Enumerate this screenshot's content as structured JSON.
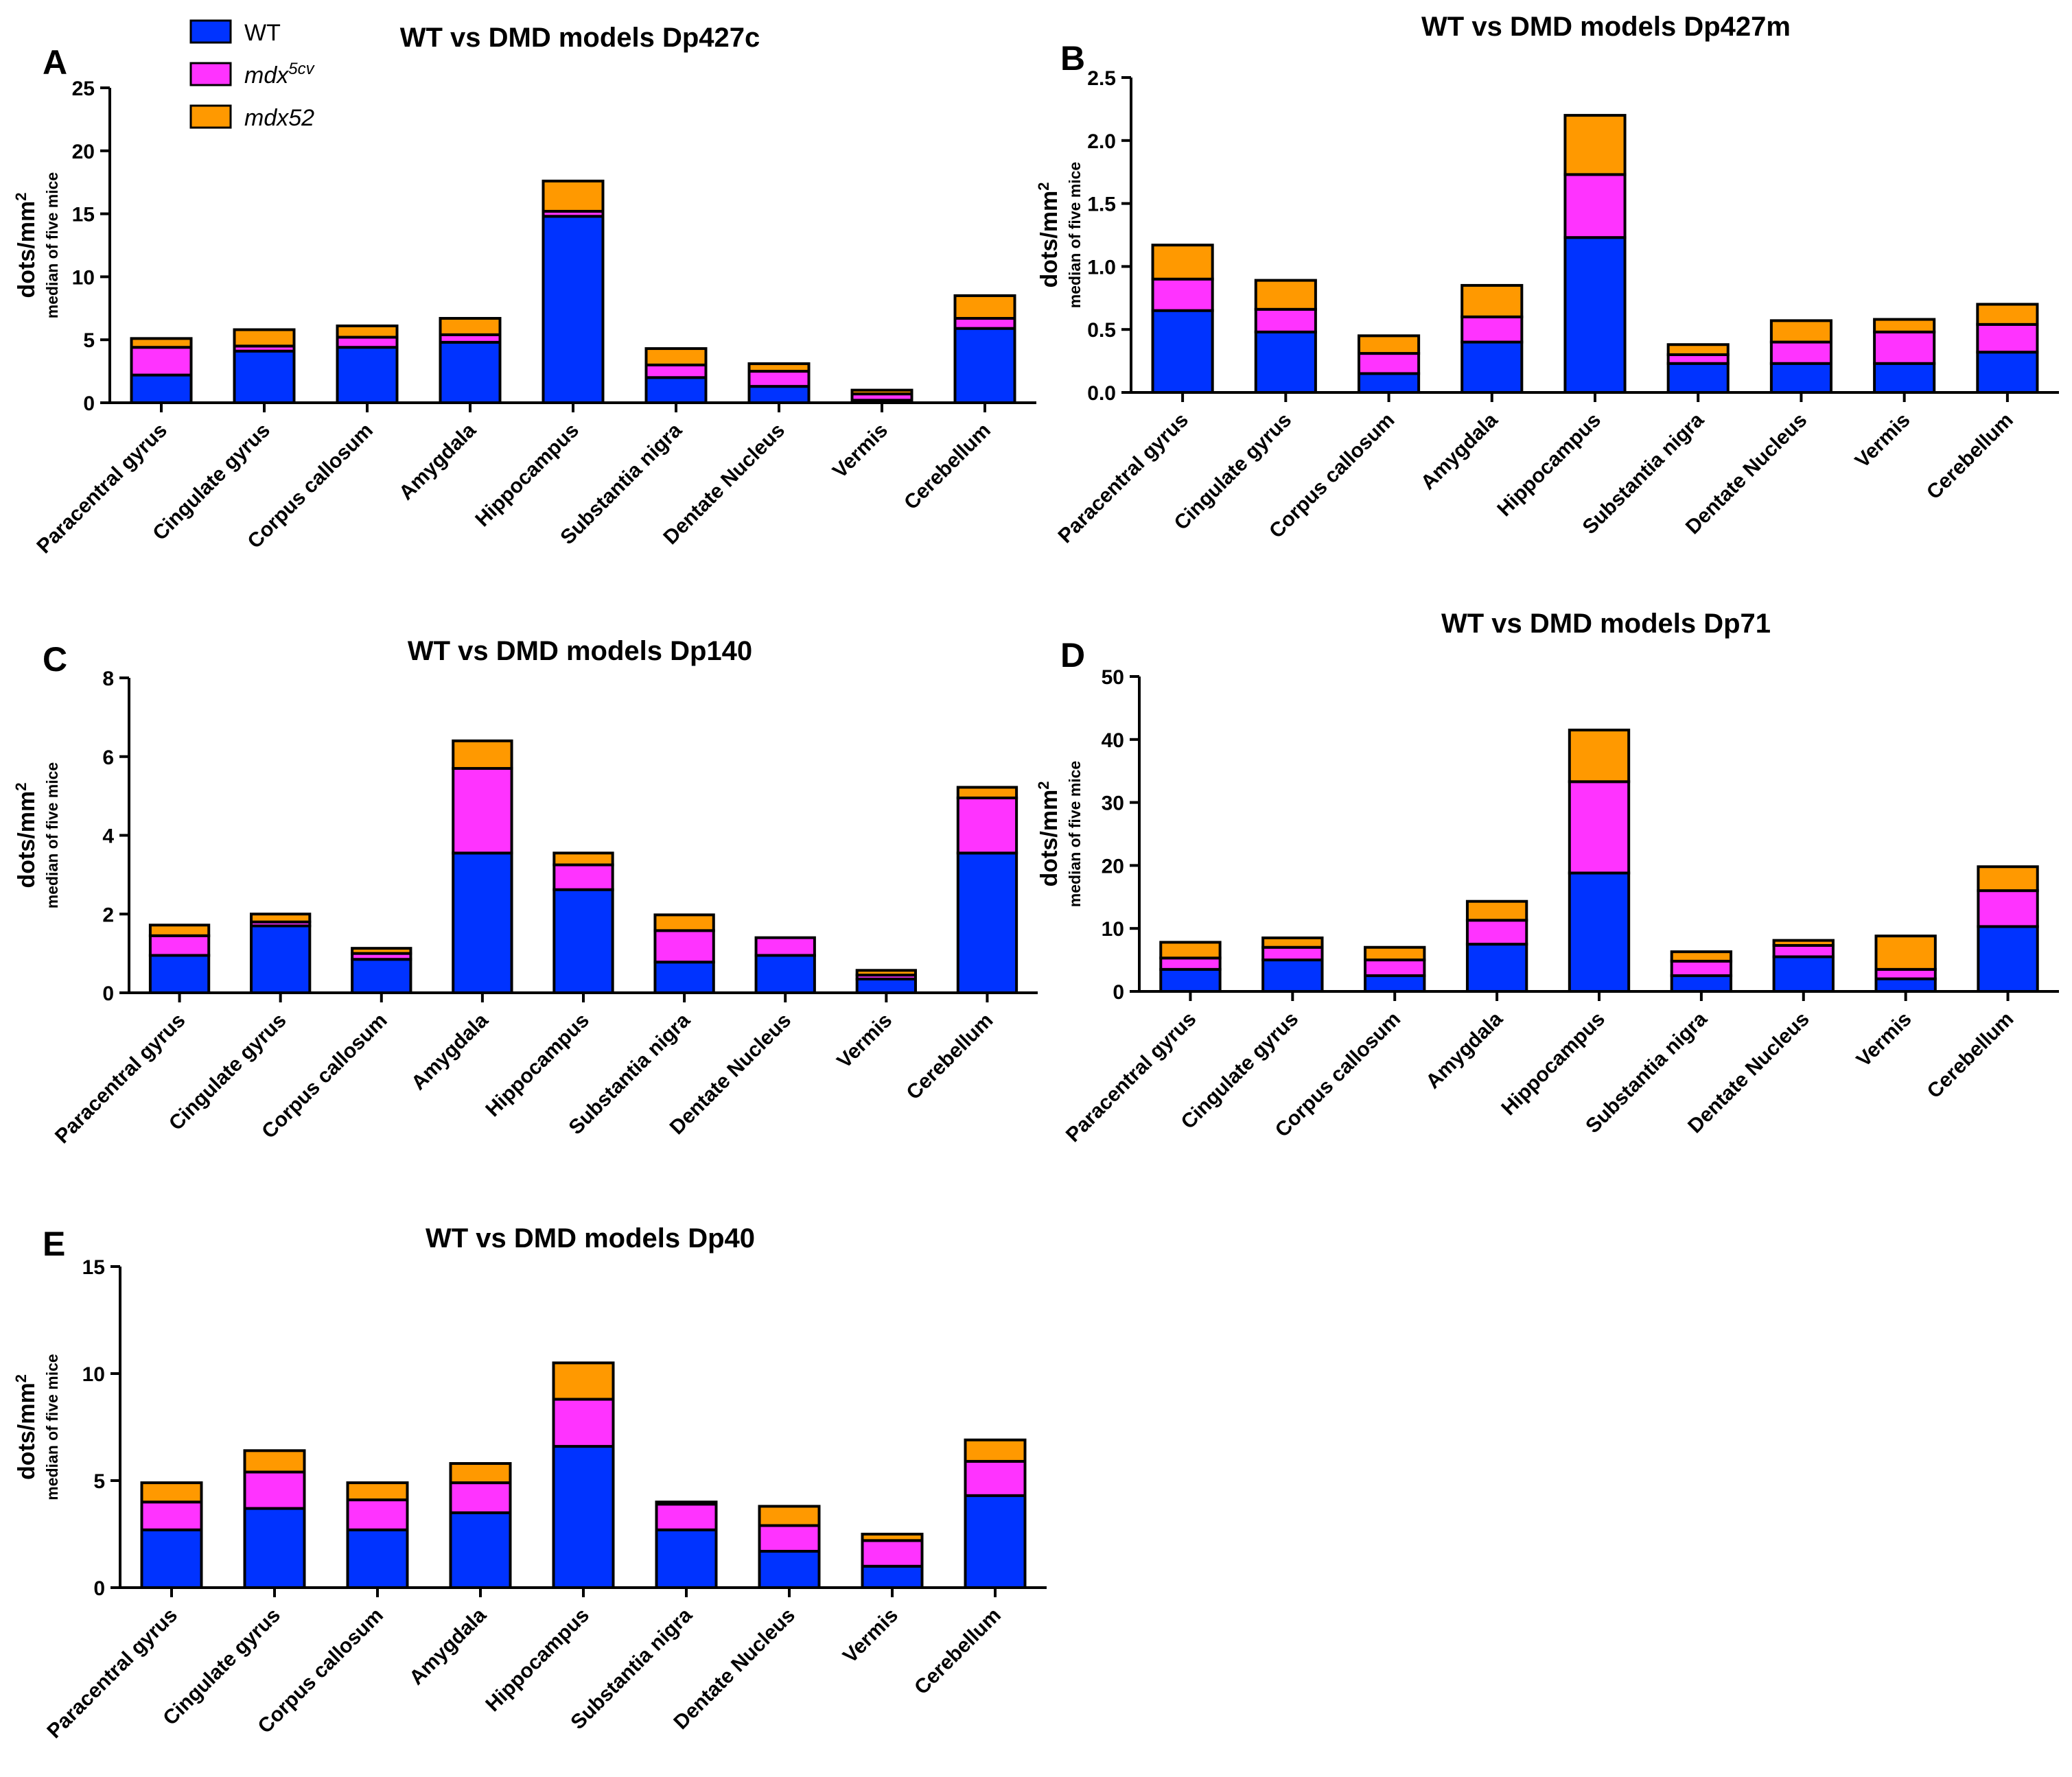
{
  "legend": {
    "items": [
      {
        "label": "WT",
        "sup": "",
        "color": "#0033ff",
        "italic": false
      },
      {
        "label": "mdx",
        "sup": "5cv",
        "color": "#ff33ff",
        "italic": true
      },
      {
        "label": "mdx52",
        "sup": "",
        "color": "#ff9900",
        "italic": true
      }
    ]
  },
  "colors": {
    "WT": "#0033ff",
    "mdx5cv": "#ff33ff",
    "mdx52": "#ff9900",
    "axis": "#000000"
  },
  "chart_data": [
    {
      "panel": "A",
      "type": "bar",
      "stacked": true,
      "title": "WT vs DMD models Dp427c",
      "ylabel": "dots/mm",
      "ylabel_sup": "2",
      "ylabel_sub": "median of five mice",
      "ylim": [
        0,
        25
      ],
      "yticks": [
        "0",
        "5",
        "10",
        "15",
        "20",
        "25"
      ],
      "categories": [
        "Paracentral gyrus",
        "Cingulate gyrus",
        "Corpus callosum",
        "Amygdala",
        "Hippocampus",
        "Substantia nigra",
        "Dentate Nucleus",
        "Vermis",
        "Cerebellum"
      ],
      "series": [
        {
          "name": "WT",
          "values": [
            2.2,
            4.1,
            4.4,
            4.8,
            14.8,
            2.0,
            1.3,
            0.2,
            5.9
          ]
        },
        {
          "name": "mdx5cv",
          "values": [
            2.2,
            0.4,
            0.8,
            0.6,
            0.4,
            1.0,
            1.2,
            0.5,
            0.8
          ]
        },
        {
          "name": "mdx52",
          "values": [
            0.7,
            1.3,
            0.9,
            1.3,
            2.4,
            1.3,
            0.6,
            0.3,
            1.8
          ]
        }
      ]
    },
    {
      "panel": "B",
      "type": "bar",
      "stacked": true,
      "title": "WT vs DMD models Dp427m",
      "ylabel": "dots/mm",
      "ylabel_sup": "2",
      "ylabel_sub": "median of five mice",
      "ylim": [
        0,
        2.5
      ],
      "yticks": [
        "0.0",
        "0.5",
        "1.0",
        "1.5",
        "2.0",
        "2.5"
      ],
      "categories": [
        "Paracentral gyrus",
        "Cingulate gyrus",
        "Corpus callosum",
        "Amygdala",
        "Hippocampus",
        "Substantia nigra",
        "Dentate Nucleus",
        "Vermis",
        "Cerebellum"
      ],
      "series": [
        {
          "name": "WT",
          "values": [
            0.65,
            0.48,
            0.15,
            0.4,
            1.23,
            0.23,
            0.23,
            0.23,
            0.32
          ]
        },
        {
          "name": "mdx5cv",
          "values": [
            0.25,
            0.18,
            0.16,
            0.2,
            0.5,
            0.07,
            0.17,
            0.25,
            0.22
          ]
        },
        {
          "name": "mdx52",
          "values": [
            0.27,
            0.23,
            0.14,
            0.25,
            0.47,
            0.08,
            0.17,
            0.1,
            0.16
          ]
        }
      ]
    },
    {
      "panel": "C",
      "type": "bar",
      "stacked": true,
      "title": "WT vs DMD models Dp140",
      "ylabel": "dots/mm",
      "ylabel_sup": "2",
      "ylabel_sub": "median of five mice",
      "ylim": [
        0,
        8
      ],
      "yticks": [
        "0",
        "2",
        "4",
        "6",
        "8"
      ],
      "categories": [
        "Paracentral gyrus",
        "Cingulate gyrus",
        "Corpus callosum",
        "Amygdala",
        "Hippocampus",
        "Substantia nigra",
        "Dentate Nucleus",
        "Vermis",
        "Cerebellum"
      ],
      "series": [
        {
          "name": "WT",
          "values": [
            0.95,
            1.7,
            0.85,
            3.55,
            2.62,
            0.78,
            0.95,
            0.35,
            3.55
          ]
        },
        {
          "name": "mdx5cv",
          "values": [
            0.5,
            0.1,
            0.15,
            2.15,
            0.63,
            0.8,
            0.45,
            0.1,
            1.4
          ]
        },
        {
          "name": "mdx52",
          "values": [
            0.27,
            0.2,
            0.13,
            0.7,
            0.3,
            0.4,
            0.0,
            0.12,
            0.27
          ]
        }
      ]
    },
    {
      "panel": "D",
      "type": "bar",
      "stacked": true,
      "title": "WT vs DMD models Dp71",
      "ylabel": "dots/mm",
      "ylabel_sup": "2",
      "ylabel_sub": "median of five mice",
      "ylim": [
        0,
        50
      ],
      "yticks": [
        "0",
        "10",
        "20",
        "30",
        "40",
        "50"
      ],
      "categories": [
        "Paracentral gyrus",
        "Cingulate gyrus",
        "Corpus callosum",
        "Amygdala",
        "Hippocampus",
        "Substantia nigra",
        "Dentate Nucleus",
        "Vermis",
        "Cerebellum"
      ],
      "series": [
        {
          "name": "WT",
          "values": [
            3.5,
            5.0,
            2.5,
            7.5,
            18.8,
            2.5,
            5.5,
            2.0,
            10.3
          ]
        },
        {
          "name": "mdx5cv",
          "values": [
            1.8,
            2.0,
            2.5,
            3.8,
            14.5,
            2.3,
            1.8,
            1.5,
            5.7
          ]
        },
        {
          "name": "mdx52",
          "values": [
            2.5,
            1.5,
            2.0,
            3.0,
            8.2,
            1.5,
            0.8,
            5.3,
            3.8
          ]
        }
      ]
    },
    {
      "panel": "E",
      "type": "bar",
      "stacked": true,
      "title": "WT vs DMD models Dp40",
      "ylabel": "dots/mm",
      "ylabel_sup": "2",
      "ylabel_sub": "median of five mice",
      "ylim": [
        0,
        15
      ],
      "yticks": [
        "0",
        "5",
        "10",
        "15"
      ],
      "categories": [
        "Paracentral gyrus",
        "Cingulate gyrus",
        "Corpus callosum",
        "Amygdala",
        "Hippocampus",
        "Substantia nigra",
        "Dentate Nucleus",
        "Vermis",
        "Cerebellum"
      ],
      "series": [
        {
          "name": "WT",
          "values": [
            2.7,
            3.7,
            2.7,
            3.5,
            6.6,
            2.7,
            1.7,
            1.0,
            4.3
          ]
        },
        {
          "name": "mdx5cv",
          "values": [
            1.3,
            1.7,
            1.4,
            1.4,
            2.2,
            1.2,
            1.2,
            1.2,
            1.6
          ]
        },
        {
          "name": "mdx52",
          "values": [
            0.9,
            1.0,
            0.8,
            0.9,
            1.7,
            0.1,
            0.9,
            0.3,
            1.0
          ]
        }
      ]
    }
  ]
}
